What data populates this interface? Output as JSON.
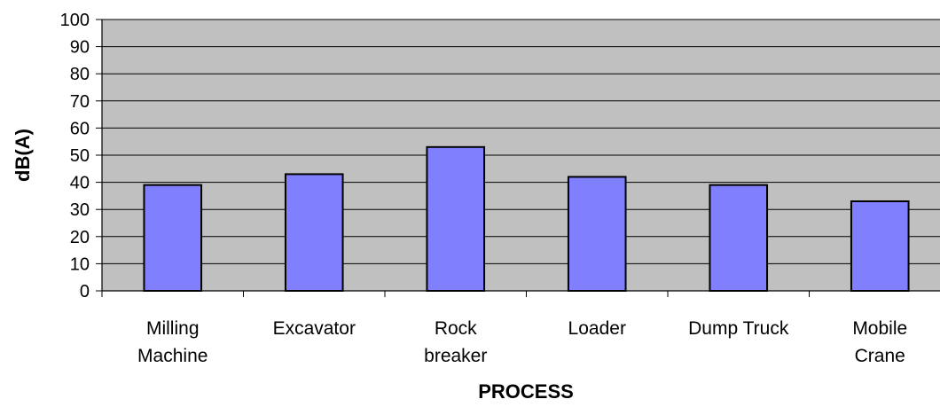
{
  "chart_data": {
    "type": "bar",
    "title": "",
    "xlabel": "PROCESS",
    "ylabel": "dB(A)",
    "categories": [
      [
        "Milling",
        "Machine"
      ],
      [
        "Excavator"
      ],
      [
        "Rock",
        "breaker"
      ],
      [
        "Loader"
      ],
      [
        "Dump Truck"
      ],
      [
        "Mobile",
        "Crane"
      ]
    ],
    "values": [
      39,
      43,
      53,
      42,
      39,
      33
    ],
    "ylim": [
      0,
      100
    ],
    "yticks": [
      0,
      10,
      20,
      30,
      40,
      50,
      60,
      70,
      80,
      90,
      100
    ],
    "grid": true,
    "legend": "none",
    "colors": {
      "plot_background": "#c0c0c0",
      "bar_fill": "#8080ff",
      "bar_stroke": "#000000",
      "gridline": "#000000"
    }
  }
}
